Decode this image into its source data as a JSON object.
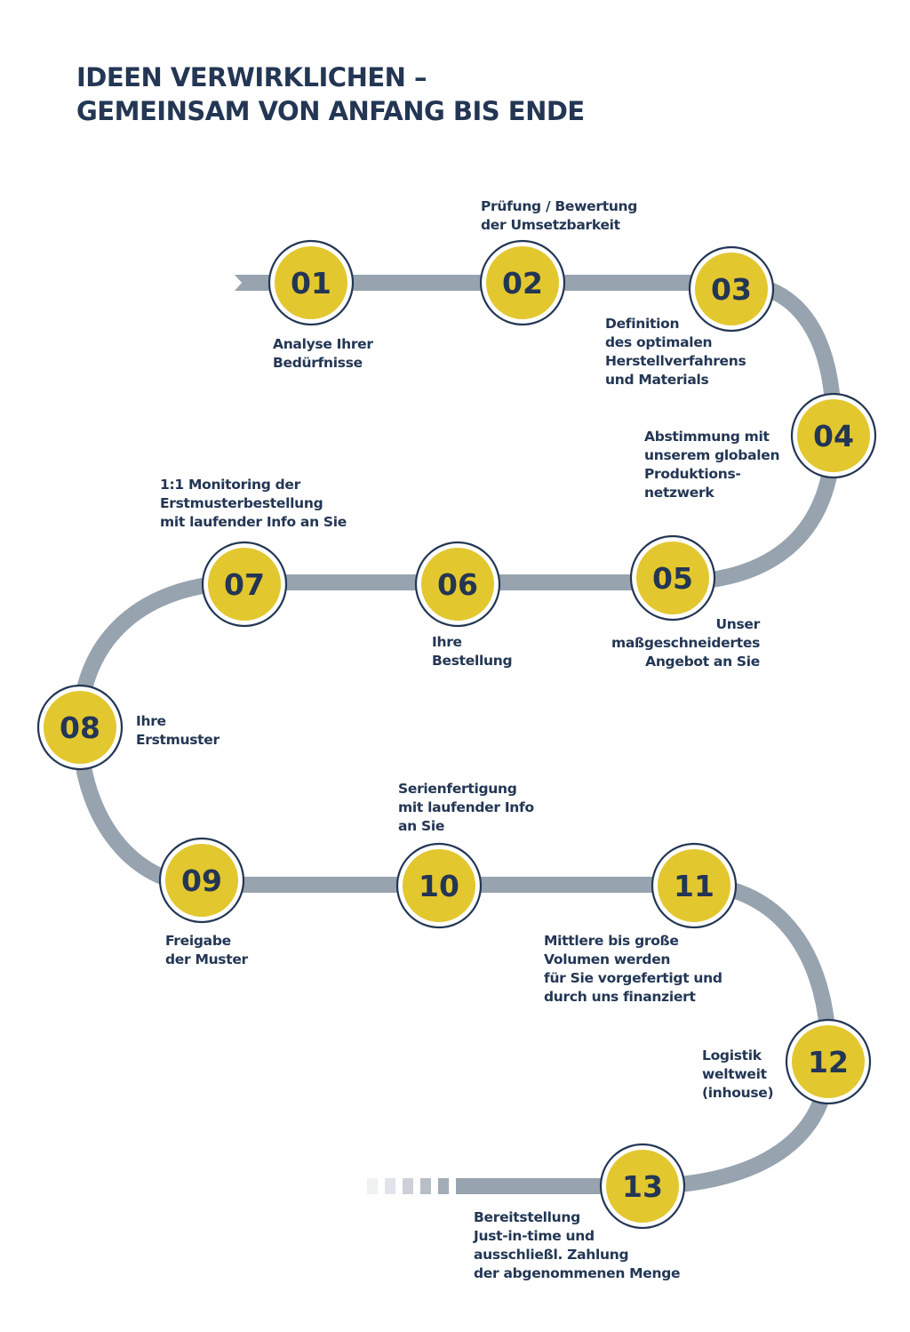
{
  "title": [
    "IDEEN VERWIRKLICHEN –",
    "GEMEINSAM VON ANFANG BIS ENDE"
  ],
  "colors": {
    "navy": "#233654",
    "yellow": "#e3c72f",
    "track": "#97a3ae"
  },
  "steps": [
    {
      "number": "01",
      "label": [
        "Analyse Ihrer",
        "Bedürfnisse"
      ]
    },
    {
      "number": "02",
      "label": [
        "Prüfung / Bewertung",
        "der Umsetzbarkeit"
      ]
    },
    {
      "number": "03",
      "label": [
        "Definition",
        "des optimalen",
        "Herstellverfahrens",
        "und Materials"
      ]
    },
    {
      "number": "04",
      "label": [
        "Abstimmung mit",
        "unserem globalen",
        "Produktions-",
        "netzwerk"
      ]
    },
    {
      "number": "05",
      "label": [
        "Unser",
        "maßgeschneidertes",
        "Angebot an Sie"
      ]
    },
    {
      "number": "06",
      "label": [
        "Ihre",
        "Bestellung"
      ]
    },
    {
      "number": "07",
      "label": [
        "1:1 Monitoring der",
        "Erstmusterbestellung",
        "mit laufender Info an Sie"
      ]
    },
    {
      "number": "08",
      "label": [
        "Ihre",
        "Erstmuster"
      ]
    },
    {
      "number": "09",
      "label": [
        "Freigabe",
        "der Muster"
      ]
    },
    {
      "number": "10",
      "label": [
        "Serienfertigung",
        "mit laufender Info",
        "an Sie"
      ]
    },
    {
      "number": "11",
      "label": [
        "Mittlere bis große",
        "Volumen werden",
        "für Sie vorgefertigt und",
        "durch uns finanziert"
      ]
    },
    {
      "number": "12",
      "label": [
        "Logistik",
        "weltweit",
        "(inhouse)"
      ]
    },
    {
      "number": "13",
      "label": [
        "Bereitstellung",
        "Just-in-time und",
        "ausschließl. Zahlung",
        "der abgenommenen Menge"
      ]
    }
  ]
}
